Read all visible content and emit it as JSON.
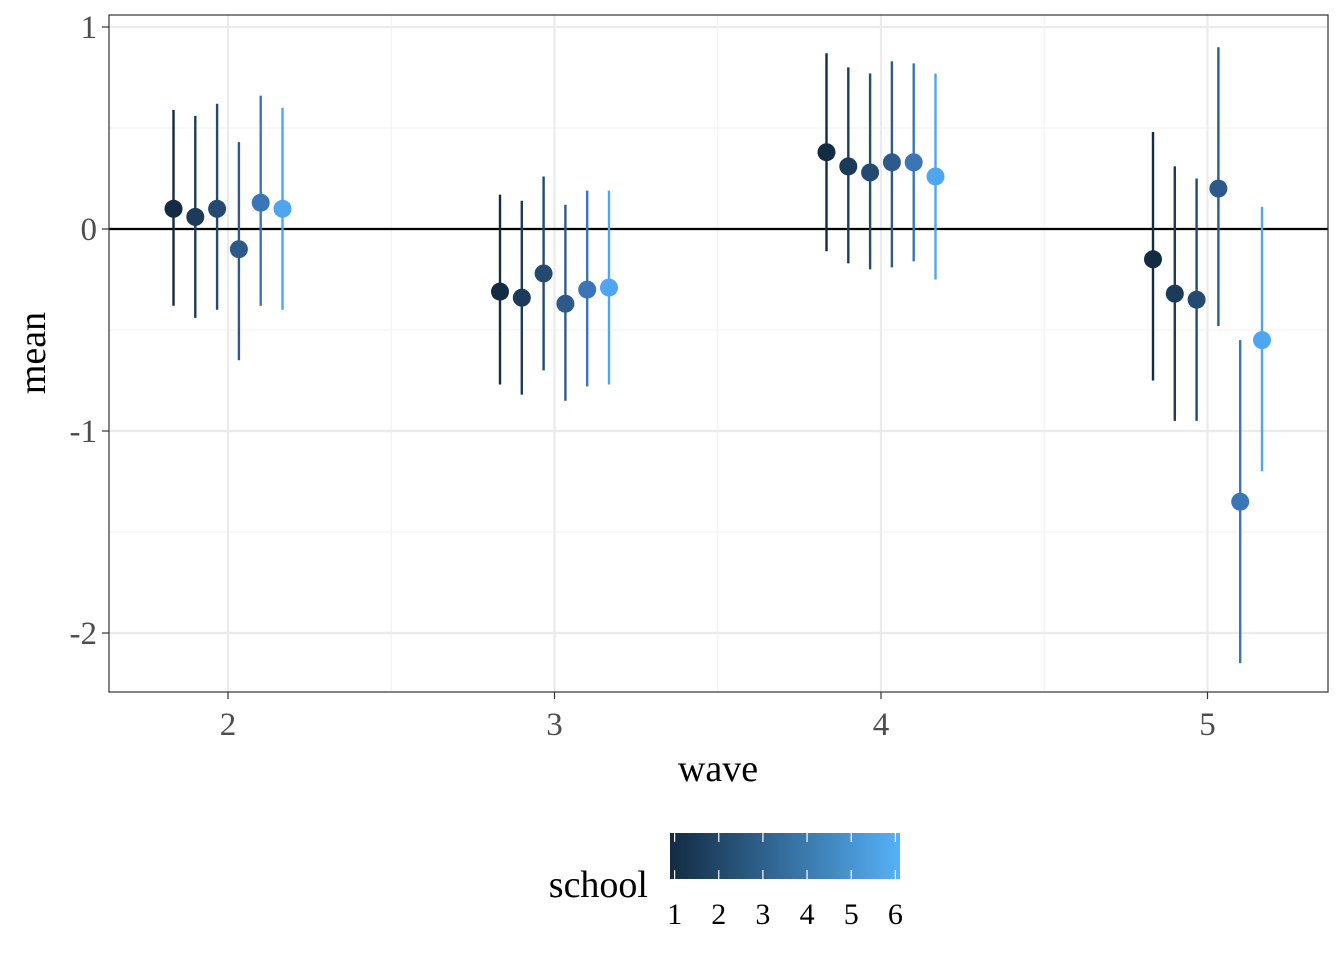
{
  "chart_data": {
    "type": "scatter",
    "title": "",
    "xlabel": "wave",
    "ylabel": "mean",
    "x_categories": [
      "2",
      "3",
      "4",
      "5"
    ],
    "y_ticks": [
      "1",
      "0",
      "-1",
      "-2"
    ],
    "ylim": [
      -2.3,
      1.05
    ],
    "reference_line_y": 0,
    "grid": true,
    "legend": {
      "title": "school",
      "position": "bottom",
      "type": "colorbar",
      "labels": [
        "1",
        "2",
        "3",
        "4",
        "5",
        "6"
      ],
      "color_low": "#132B43",
      "color_high": "#56B1F7"
    },
    "series": [
      {
        "name": "1",
        "color": "#132B43",
        "points": [
          {
            "x": "2",
            "mean": 0.1,
            "lower": -0.38,
            "upper": 0.59
          },
          {
            "x": "3",
            "mean": -0.31,
            "lower": -0.77,
            "upper": 0.17
          },
          {
            "x": "4",
            "mean": 0.38,
            "lower": -0.11,
            "upper": 0.87
          },
          {
            "x": "5",
            "mean": -0.15,
            "lower": -0.75,
            "upper": 0.48
          }
        ]
      },
      {
        "name": "2",
        "color": "#1C3A5A",
        "points": [
          {
            "x": "2",
            "mean": 0.06,
            "lower": -0.44,
            "upper": 0.56
          },
          {
            "x": "3",
            "mean": -0.34,
            "lower": -0.82,
            "upper": 0.14
          },
          {
            "x": "4",
            "mean": 0.31,
            "lower": -0.17,
            "upper": 0.8
          },
          {
            "x": "5",
            "mean": -0.32,
            "lower": -0.95,
            "upper": 0.31
          }
        ]
      },
      {
        "name": "3",
        "color": "#254A72",
        "points": [
          {
            "x": "2",
            "mean": 0.1,
            "lower": -0.4,
            "upper": 0.62
          },
          {
            "x": "3",
            "mean": -0.22,
            "lower": -0.7,
            "upper": 0.26
          },
          {
            "x": "4",
            "mean": 0.28,
            "lower": -0.2,
            "upper": 0.77
          },
          {
            "x": "5",
            "mean": -0.35,
            "lower": -0.95,
            "upper": 0.25
          }
        ]
      },
      {
        "name": "4",
        "color": "#2E5A8B",
        "points": [
          {
            "x": "2",
            "mean": -0.1,
            "lower": -0.65,
            "upper": 0.43
          },
          {
            "x": "3",
            "mean": -0.37,
            "lower": -0.85,
            "upper": 0.12
          },
          {
            "x": "4",
            "mean": 0.33,
            "lower": -0.19,
            "upper": 0.83
          },
          {
            "x": "5",
            "mean": 0.2,
            "lower": -0.48,
            "upper": 0.9
          }
        ]
      },
      {
        "name": "5",
        "color": "#3A76B7",
        "points": [
          {
            "x": "2",
            "mean": 0.13,
            "lower": -0.38,
            "upper": 0.66
          },
          {
            "x": "3",
            "mean": -0.3,
            "lower": -0.78,
            "upper": 0.19
          },
          {
            "x": "4",
            "mean": 0.33,
            "lower": -0.16,
            "upper": 0.82
          },
          {
            "x": "5",
            "mean": -1.35,
            "lower": -2.15,
            "upper": -0.55
          }
        ]
      },
      {
        "name": "6",
        "color": "#4FA6F0",
        "points": [
          {
            "x": "2",
            "mean": 0.1,
            "lower": -0.4,
            "upper": 0.6
          },
          {
            "x": "3",
            "mean": -0.29,
            "lower": -0.77,
            "upper": 0.19
          },
          {
            "x": "4",
            "mean": 0.26,
            "lower": -0.25,
            "upper": 0.77
          },
          {
            "x": "5",
            "mean": -0.55,
            "lower": -1.2,
            "upper": 0.11
          }
        ]
      }
    ]
  }
}
